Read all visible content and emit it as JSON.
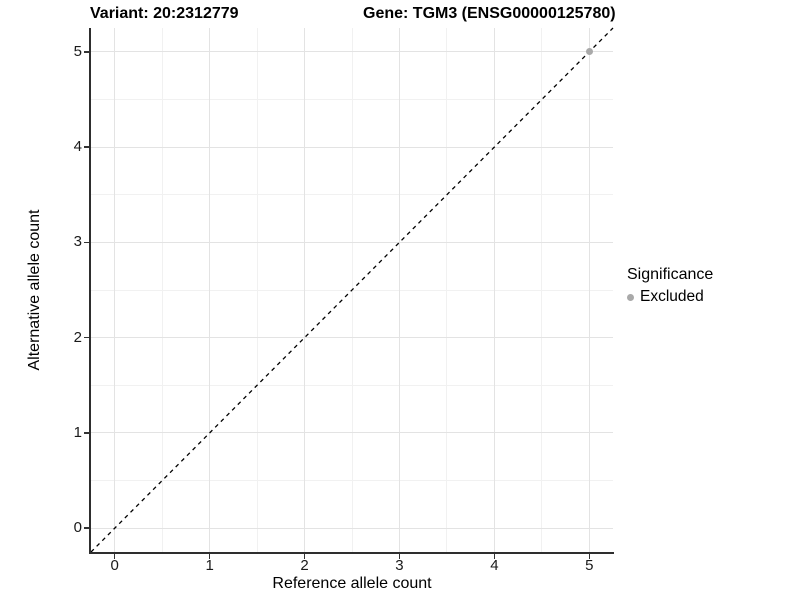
{
  "figure": {
    "title_left": "Variant: 20:2312779",
    "title_right": "Gene: TGM3 (ENSG00000125780)"
  },
  "chart_data": {
    "type": "scatter",
    "title": "Variant: 20:2312779   Gene: TGM3 (ENSG00000125780)",
    "xlabel": "Reference allele count",
    "ylabel": "Alternative allele count",
    "xlim": [
      -0.25,
      5.25
    ],
    "ylim": [
      -0.25,
      5.25
    ],
    "xticks": [
      0,
      1,
      2,
      3,
      4,
      5
    ],
    "yticks": [
      0,
      1,
      2,
      3,
      4,
      5
    ],
    "grid": "major-and-minor",
    "minor_grid_step": 0.5,
    "identity_line": {
      "slope": 1,
      "intercept": 0,
      "style": "dashed",
      "color": "#000000"
    },
    "series": [
      {
        "name": "Excluded",
        "color": "#a9a9a9",
        "points": [
          {
            "x": 5,
            "y": 5
          }
        ]
      }
    ],
    "legend": {
      "title": "Significance",
      "position": "right",
      "items": [
        {
          "label": "Excluded",
          "color": "#a9a9a9"
        }
      ]
    },
    "colors": {
      "axis_line": "#2e2e2e",
      "major_grid": "#e3e3e3",
      "minor_grid": "#f1f1f1",
      "panel_background": "#ffffff",
      "excluded_point": "#a9a9a9"
    }
  }
}
